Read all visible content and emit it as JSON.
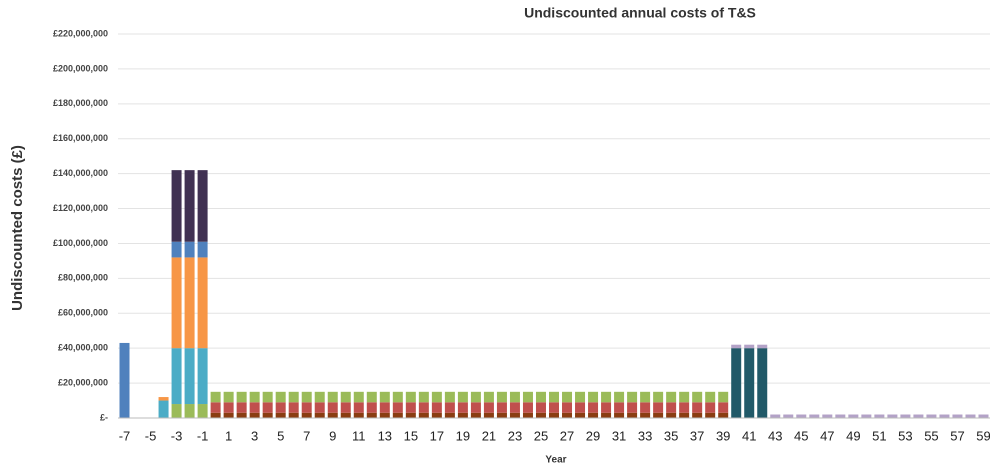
{
  "chart_data": {
    "type": "stacked_bar",
    "title": "Undiscounted annual costs of T&S",
    "x_label": "Year",
    "y_label": "Undiscounted costs (£)",
    "categories": [
      -7,
      null,
      -5,
      null,
      -3,
      null,
      -1,
      null,
      1,
      null,
      3,
      null,
      5,
      null,
      7,
      null,
      9,
      null,
      11,
      null,
      13,
      null,
      15,
      null,
      17,
      null,
      19,
      null,
      21,
      null,
      23,
      null,
      25,
      null,
      27,
      null,
      29,
      null,
      31,
      null,
      33,
      null,
      35,
      null,
      37,
      null,
      39,
      null,
      41,
      null,
      43,
      null,
      45,
      null,
      47,
      null,
      49,
      null,
      51,
      null,
      53,
      null,
      55,
      null,
      57,
      null,
      59
    ],
    "ylim": [
      0,
      220000000
    ],
    "yticks": [
      {
        "value": 0,
        "label": "£-"
      },
      {
        "value": 20000000,
        "label": "£20,000,000"
      },
      {
        "value": 40000000,
        "label": "£40,000,000"
      },
      {
        "value": 60000000,
        "label": "£60,000,000"
      },
      {
        "value": 80000000,
        "label": "£80,000,000"
      },
      {
        "value": 100000000,
        "label": "£100,000,000"
      },
      {
        "value": 120000000,
        "label": "£120,000,000"
      },
      {
        "value": 140000000,
        "label": "£140,000,000"
      },
      {
        "value": 160000000,
        "label": "£160,000,000"
      },
      {
        "value": 180000000,
        "label": "£180,000,000"
      },
      {
        "value": 200000000,
        "label": "£200,000,000"
      },
      {
        "value": 220000000,
        "label": "£220,000,000"
      }
    ],
    "grid": true,
    "series": [
      {
        "color": "#8a3d12",
        "values": [
          null,
          null,
          null,
          null,
          null,
          null,
          null,
          3000000,
          3000000,
          3000000,
          3000000,
          3000000,
          3000000,
          3000000,
          3000000,
          3000000,
          3000000,
          3000000,
          3000000,
          3000000,
          3000000,
          3000000,
          3000000,
          3000000,
          3000000,
          3000000,
          3000000,
          3000000,
          3000000,
          3000000,
          3000000,
          3000000,
          3000000,
          3000000,
          3000000,
          3000000,
          3000000,
          3000000,
          3000000,
          3000000,
          3000000,
          3000000,
          3000000,
          3000000,
          3000000,
          3000000,
          3000000,
          null,
          null,
          null,
          null,
          null,
          null,
          null,
          null,
          null,
          null,
          null,
          null,
          null,
          null,
          null,
          null,
          null,
          null,
          null,
          null
        ]
      },
      {
        "color": "#c0504d",
        "values": [
          null,
          null,
          null,
          null,
          null,
          null,
          null,
          6000000,
          6000000,
          6000000,
          6000000,
          6000000,
          6000000,
          6000000,
          6000000,
          6000000,
          6000000,
          6000000,
          6000000,
          6000000,
          6000000,
          6000000,
          6000000,
          6000000,
          6000000,
          6000000,
          6000000,
          6000000,
          6000000,
          6000000,
          6000000,
          6000000,
          6000000,
          6000000,
          6000000,
          6000000,
          6000000,
          6000000,
          6000000,
          6000000,
          6000000,
          6000000,
          6000000,
          6000000,
          6000000,
          6000000,
          6000000,
          null,
          null,
          null,
          null,
          null,
          null,
          null,
          null,
          null,
          null,
          null,
          null,
          null,
          null,
          null,
          null,
          null,
          null,
          null,
          null
        ]
      },
      {
        "color": "#9bbb59",
        "values": [
          null,
          null,
          null,
          null,
          8000000,
          8000000,
          8000000,
          6000000,
          6000000,
          6000000,
          6000000,
          6000000,
          6000000,
          6000000,
          6000000,
          6000000,
          6000000,
          6000000,
          6000000,
          6000000,
          6000000,
          6000000,
          6000000,
          6000000,
          6000000,
          6000000,
          6000000,
          6000000,
          6000000,
          6000000,
          6000000,
          6000000,
          6000000,
          6000000,
          6000000,
          6000000,
          6000000,
          6000000,
          6000000,
          6000000,
          6000000,
          6000000,
          6000000,
          6000000,
          6000000,
          6000000,
          6000000,
          null,
          null,
          null,
          null,
          null,
          null,
          null,
          null,
          null,
          null,
          null,
          null,
          null,
          null,
          null,
          null,
          null,
          null,
          null,
          null
        ]
      },
      {
        "color": "#4bacc6",
        "values": [
          null,
          null,
          null,
          10000000,
          32000000,
          32000000,
          32000000,
          null,
          null,
          null,
          null,
          null,
          null,
          null,
          null,
          null,
          null,
          null,
          null,
          null,
          null,
          null,
          null,
          null,
          null,
          null,
          null,
          null,
          null,
          null,
          null,
          null,
          null,
          null,
          null,
          null,
          null,
          null,
          null,
          null,
          null,
          null,
          null,
          null,
          null,
          null,
          null,
          null,
          null,
          null,
          null,
          null,
          null,
          null,
          null,
          null,
          null,
          null,
          null,
          null,
          null,
          null,
          null,
          null,
          null,
          null,
          null
        ]
      },
      {
        "color": "#f79646",
        "values": [
          null,
          null,
          null,
          2000000,
          52000000,
          52000000,
          52000000,
          null,
          null,
          null,
          null,
          null,
          null,
          null,
          null,
          null,
          null,
          null,
          null,
          null,
          null,
          null,
          null,
          null,
          null,
          null,
          null,
          null,
          null,
          null,
          null,
          null,
          null,
          null,
          null,
          null,
          null,
          null,
          null,
          null,
          null,
          null,
          null,
          null,
          null,
          null,
          null,
          null,
          null,
          null,
          null,
          null,
          null,
          null,
          null,
          null,
          null,
          null,
          null,
          null,
          null,
          null,
          null,
          null,
          null,
          null,
          null
        ]
      },
      {
        "color": "#4f81bd",
        "values": [
          43000000,
          null,
          null,
          null,
          9000000,
          9000000,
          9000000,
          null,
          null,
          null,
          null,
          null,
          null,
          null,
          null,
          null,
          null,
          null,
          null,
          null,
          null,
          null,
          null,
          null,
          null,
          null,
          null,
          null,
          null,
          null,
          null,
          null,
          null,
          null,
          null,
          null,
          null,
          null,
          null,
          null,
          null,
          null,
          null,
          null,
          null,
          null,
          null,
          null,
          null,
          null,
          null,
          null,
          null,
          null,
          null,
          null,
          null,
          null,
          null,
          null,
          null,
          null,
          null,
          null,
          null,
          null,
          null
        ]
      },
      {
        "color": "#403152",
        "values": [
          null,
          null,
          null,
          null,
          41000000,
          41000000,
          41000000,
          null,
          null,
          null,
          null,
          null,
          null,
          null,
          null,
          null,
          null,
          null,
          null,
          null,
          null,
          null,
          null,
          null,
          null,
          null,
          null,
          null,
          null,
          null,
          null,
          null,
          null,
          null,
          null,
          null,
          null,
          null,
          null,
          null,
          null,
          null,
          null,
          null,
          null,
          null,
          null,
          null,
          null,
          null,
          null,
          null,
          null,
          null,
          null,
          null,
          null,
          null,
          null,
          null,
          null,
          null,
          null,
          null,
          null,
          null,
          null
        ]
      },
      {
        "color": "#215968",
        "values": [
          null,
          null,
          null,
          null,
          null,
          null,
          null,
          null,
          null,
          null,
          null,
          null,
          null,
          null,
          null,
          null,
          null,
          null,
          null,
          null,
          null,
          null,
          null,
          null,
          null,
          null,
          null,
          null,
          null,
          null,
          null,
          null,
          null,
          null,
          null,
          null,
          null,
          null,
          null,
          null,
          null,
          null,
          null,
          null,
          null,
          null,
          null,
          40000000,
          40000000,
          40000000,
          null,
          null,
          null,
          null,
          null,
          null,
          null,
          null,
          null,
          null,
          null,
          null,
          null,
          null,
          null,
          null,
          null
        ]
      },
      {
        "color": "#b3a2c7",
        "values": [
          null,
          null,
          null,
          null,
          null,
          null,
          null,
          null,
          null,
          null,
          null,
          null,
          null,
          null,
          null,
          null,
          null,
          null,
          null,
          null,
          null,
          null,
          null,
          null,
          null,
          null,
          null,
          null,
          null,
          null,
          null,
          null,
          null,
          null,
          null,
          null,
          null,
          null,
          null,
          null,
          null,
          null,
          null,
          null,
          null,
          null,
          null,
          2000000,
          2000000,
          2000000,
          2000000,
          2000000,
          2000000,
          2000000,
          2000000,
          2000000,
          2000000,
          2000000,
          2000000,
          2000000,
          2000000,
          2000000,
          2000000,
          2000000,
          2000000,
          2000000,
          2000000
        ]
      }
    ]
  }
}
